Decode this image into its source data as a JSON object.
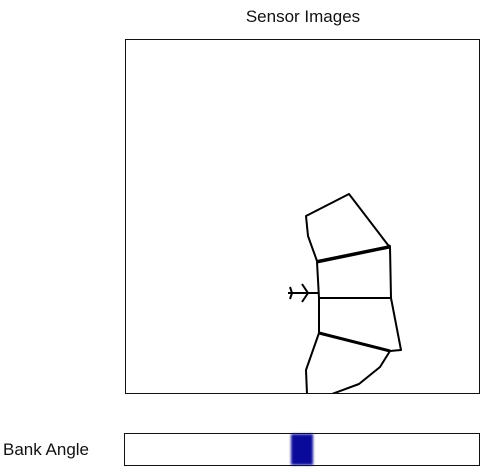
{
  "title": "Sensor Images",
  "bank_angle": {
    "label": "Bank Angle",
    "indicator_position": 0.5,
    "indicator_color": "#0a0a9a"
  },
  "icons": {
    "aircraft": "airplane-icon"
  }
}
